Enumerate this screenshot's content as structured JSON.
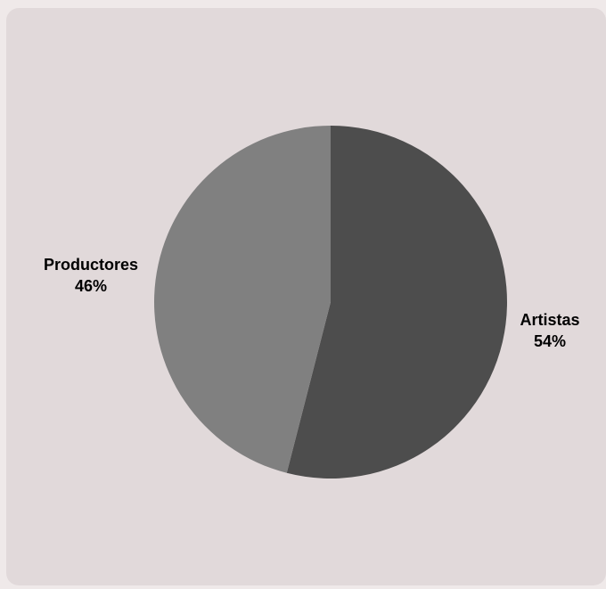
{
  "chart_data": {
    "type": "pie",
    "slices": [
      {
        "label": "Artistas",
        "value": 54,
        "value_label": "54%",
        "color": "#4d4d4d"
      },
      {
        "label": "Productores",
        "value": 46,
        "value_label": "46%",
        "color": "#808080"
      }
    ],
    "start_angle": "12 o'clock",
    "direction": "clockwise",
    "legend": "none"
  },
  "colors": {
    "background": "#e1d9da",
    "label_text": "#000000"
  }
}
